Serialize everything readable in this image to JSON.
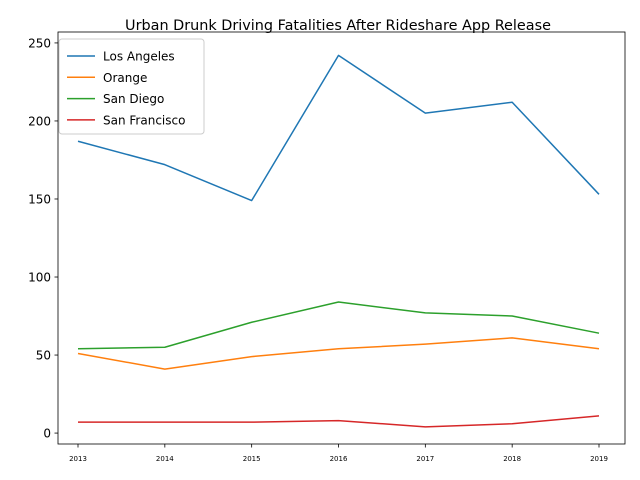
{
  "chart_data": {
    "type": "line",
    "title": "Urban Drunk Driving Fatalities After Rideshare App Release",
    "xlabel": "",
    "ylabel": "",
    "x": [
      "2013",
      "2014",
      "2015",
      "2016",
      "2017",
      "2018",
      "2019"
    ],
    "yticks": [
      "0",
      "50",
      "100",
      "150",
      "200",
      "250"
    ],
    "ylim": [
      -7,
      257
    ],
    "grid": false,
    "legend_position": "top-left",
    "series": [
      {
        "name": "Los Angeles",
        "color": "#1f77b4",
        "values": [
          187,
          172,
          149,
          242,
          205,
          212,
          153
        ]
      },
      {
        "name": "Orange",
        "color": "#ff7f0e",
        "values": [
          51,
          41,
          49,
          54,
          57,
          61,
          54
        ]
      },
      {
        "name": "San Diego",
        "color": "#2ca02c",
        "values": [
          54,
          55,
          71,
          84,
          77,
          75,
          64
        ]
      },
      {
        "name": "San Francisco",
        "color": "#d62728",
        "values": [
          7,
          7,
          7,
          8,
          4,
          6,
          11
        ]
      }
    ]
  }
}
